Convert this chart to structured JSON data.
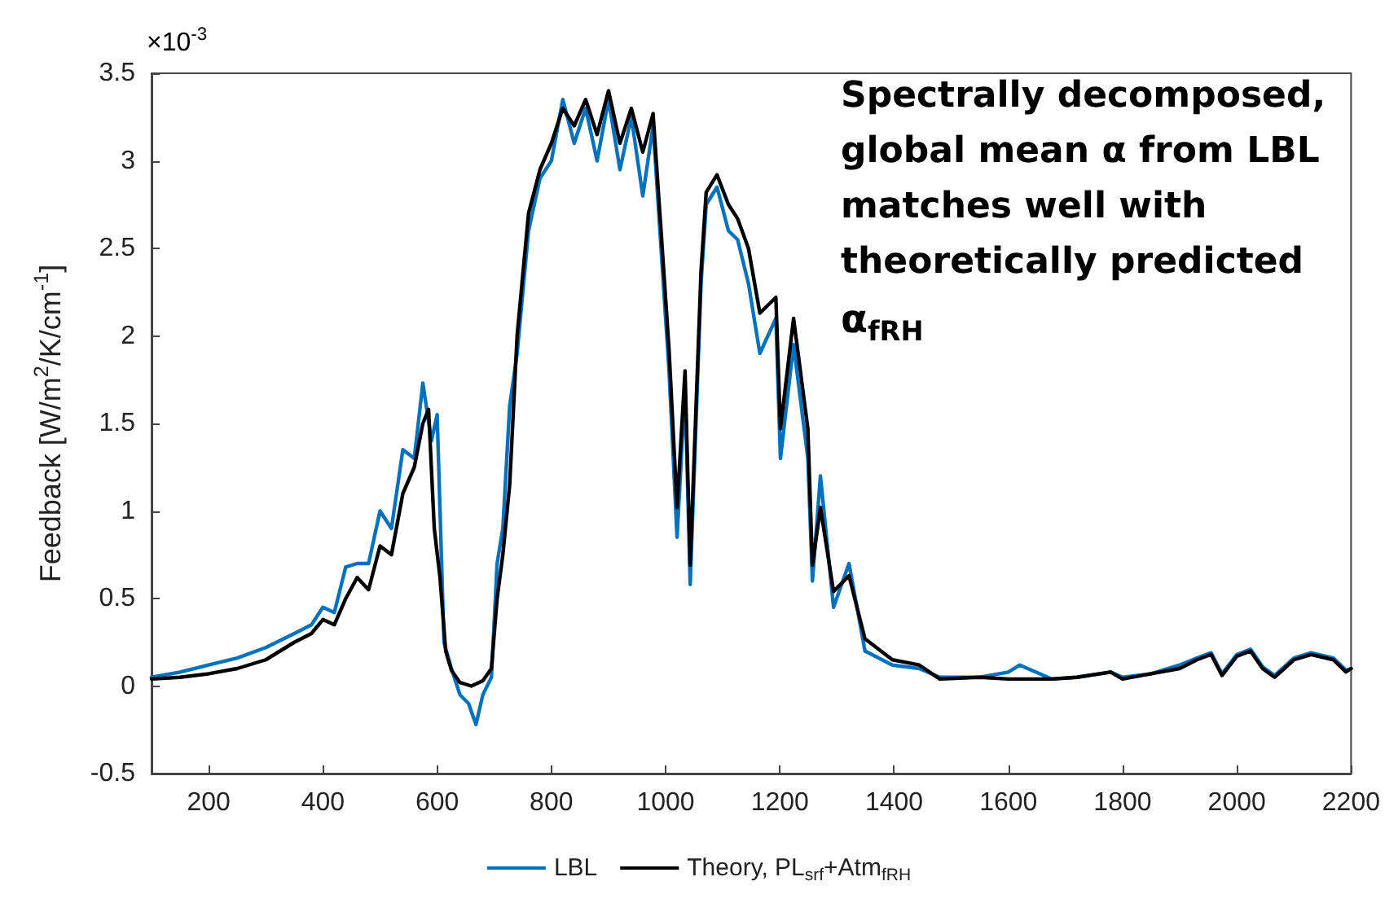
{
  "chart_data": {
    "type": "line",
    "ylabel": "Feedback [W/m$^{2}$/K/cm$^{-1}$]",
    "annotations": [
      "×10$^{-3}$",
      "Spectrally decomposed,",
      "global mean α from LBL",
      "matches well with",
      "theoretically predicted",
      "α$_{fRH}$"
    ],
    "xlim": [
      100,
      2200
    ],
    "xticks": [
      200,
      400,
      600,
      800,
      1000,
      1200,
      1400,
      1600,
      1800,
      2000,
      2200
    ],
    "ylim": [
      -0.5,
      3.5
    ],
    "yticks": [
      -0.5,
      0,
      0.5,
      1,
      1.5,
      2,
      2.5,
      3,
      3.5
    ],
    "grid": false,
    "legend": "bottom",
    "marker": "none",
    "line_style": "solid",
    "series": [
      {
        "name": "LBL",
        "color": "#0072bd",
        "x": [
          100,
          150,
          200,
          250,
          300,
          350,
          380,
          400,
          420,
          440,
          460,
          480,
          500,
          520,
          540,
          560,
          575,
          590,
          600,
          612,
          625,
          640,
          655,
          668,
          680,
          695,
          705,
          715,
          727,
          740,
          760,
          780,
          800,
          820,
          840,
          860,
          880,
          900,
          920,
          940,
          960,
          978,
          992,
          1006,
          1020,
          1034,
          1043,
          1062,
          1071,
          1090,
          1110,
          1126,
          1145,
          1165,
          1193,
          1201,
          1224,
          1249,
          1257,
          1271,
          1294,
          1321,
          1349,
          1397,
          1444,
          1480,
          1550,
          1600,
          1620,
          1676,
          1720,
          1779,
          1800,
          1850,
          1900,
          1930,
          1955,
          1974,
          2000,
          2024,
          2045,
          2066,
          2100,
          2130,
          2169,
          2191,
          2200
        ],
        "values": [
          0.05,
          0.08,
          0.12,
          0.16,
          0.22,
          0.3,
          0.35,
          0.45,
          0.42,
          0.68,
          0.7,
          0.7,
          1.0,
          0.9,
          1.35,
          1.3,
          1.73,
          1.4,
          1.55,
          0.25,
          0.1,
          -0.05,
          -0.1,
          -0.22,
          -0.05,
          0.05,
          0.7,
          0.9,
          1.6,
          1.9,
          2.6,
          2.9,
          3.0,
          3.35,
          3.1,
          3.3,
          3.0,
          3.35,
          2.95,
          3.25,
          2.8,
          3.2,
          2.5,
          1.8,
          0.85,
          1.7,
          0.58,
          2.3,
          2.75,
          2.85,
          2.6,
          2.55,
          2.3,
          1.9,
          2.1,
          1.3,
          1.95,
          1.3,
          0.6,
          1.2,
          0.45,
          0.7,
          0.2,
          0.12,
          0.1,
          0.05,
          0.05,
          0.08,
          0.12,
          0.04,
          0.05,
          0.08,
          0.05,
          0.07,
          0.12,
          0.16,
          0.19,
          0.07,
          0.18,
          0.21,
          0.11,
          0.06,
          0.16,
          0.19,
          0.16,
          0.09,
          0.1
        ]
      },
      {
        "name": "Theory, PL$_{srf}$+Atm$_{fRH}$",
        "color": "#000000",
        "x": [
          100,
          150,
          200,
          250,
          300,
          350,
          380,
          400,
          420,
          440,
          460,
          480,
          500,
          520,
          540,
          560,
          575,
          585,
          595,
          605,
          615,
          625,
          640,
          660,
          680,
          695,
          705,
          715,
          727,
          740,
          760,
          780,
          800,
          820,
          840,
          860,
          880,
          900,
          920,
          940,
          960,
          978,
          992,
          1006,
          1020,
          1034,
          1043,
          1062,
          1071,
          1090,
          1110,
          1126,
          1145,
          1165,
          1193,
          1201,
          1224,
          1249,
          1257,
          1271,
          1294,
          1321,
          1349,
          1397,
          1444,
          1480,
          1550,
          1600,
          1676,
          1720,
          1779,
          1800,
          1850,
          1900,
          1930,
          1955,
          1974,
          2000,
          2024,
          2045,
          2066,
          2100,
          2130,
          2169,
          2191,
          2200
        ],
        "values": [
          0.04,
          0.05,
          0.07,
          0.1,
          0.15,
          0.25,
          0.3,
          0.38,
          0.35,
          0.5,
          0.62,
          0.55,
          0.8,
          0.75,
          1.1,
          1.25,
          1.5,
          1.58,
          0.9,
          0.62,
          0.2,
          0.09,
          0.02,
          0.0,
          0.03,
          0.1,
          0.5,
          0.75,
          1.15,
          2.0,
          2.7,
          2.95,
          3.1,
          3.3,
          3.2,
          3.35,
          3.15,
          3.4,
          3.1,
          3.3,
          3.05,
          3.27,
          2.6,
          1.92,
          1.02,
          1.8,
          0.69,
          2.37,
          2.82,
          2.92,
          2.75,
          2.67,
          2.5,
          2.13,
          2.22,
          1.47,
          2.1,
          1.47,
          0.69,
          1.02,
          0.54,
          0.63,
          0.27,
          0.15,
          0.12,
          0.04,
          0.05,
          0.04,
          0.04,
          0.05,
          0.08,
          0.04,
          0.07,
          0.1,
          0.15,
          0.18,
          0.06,
          0.17,
          0.2,
          0.1,
          0.05,
          0.15,
          0.18,
          0.15,
          0.08,
          0.1
        ]
      }
    ]
  }
}
